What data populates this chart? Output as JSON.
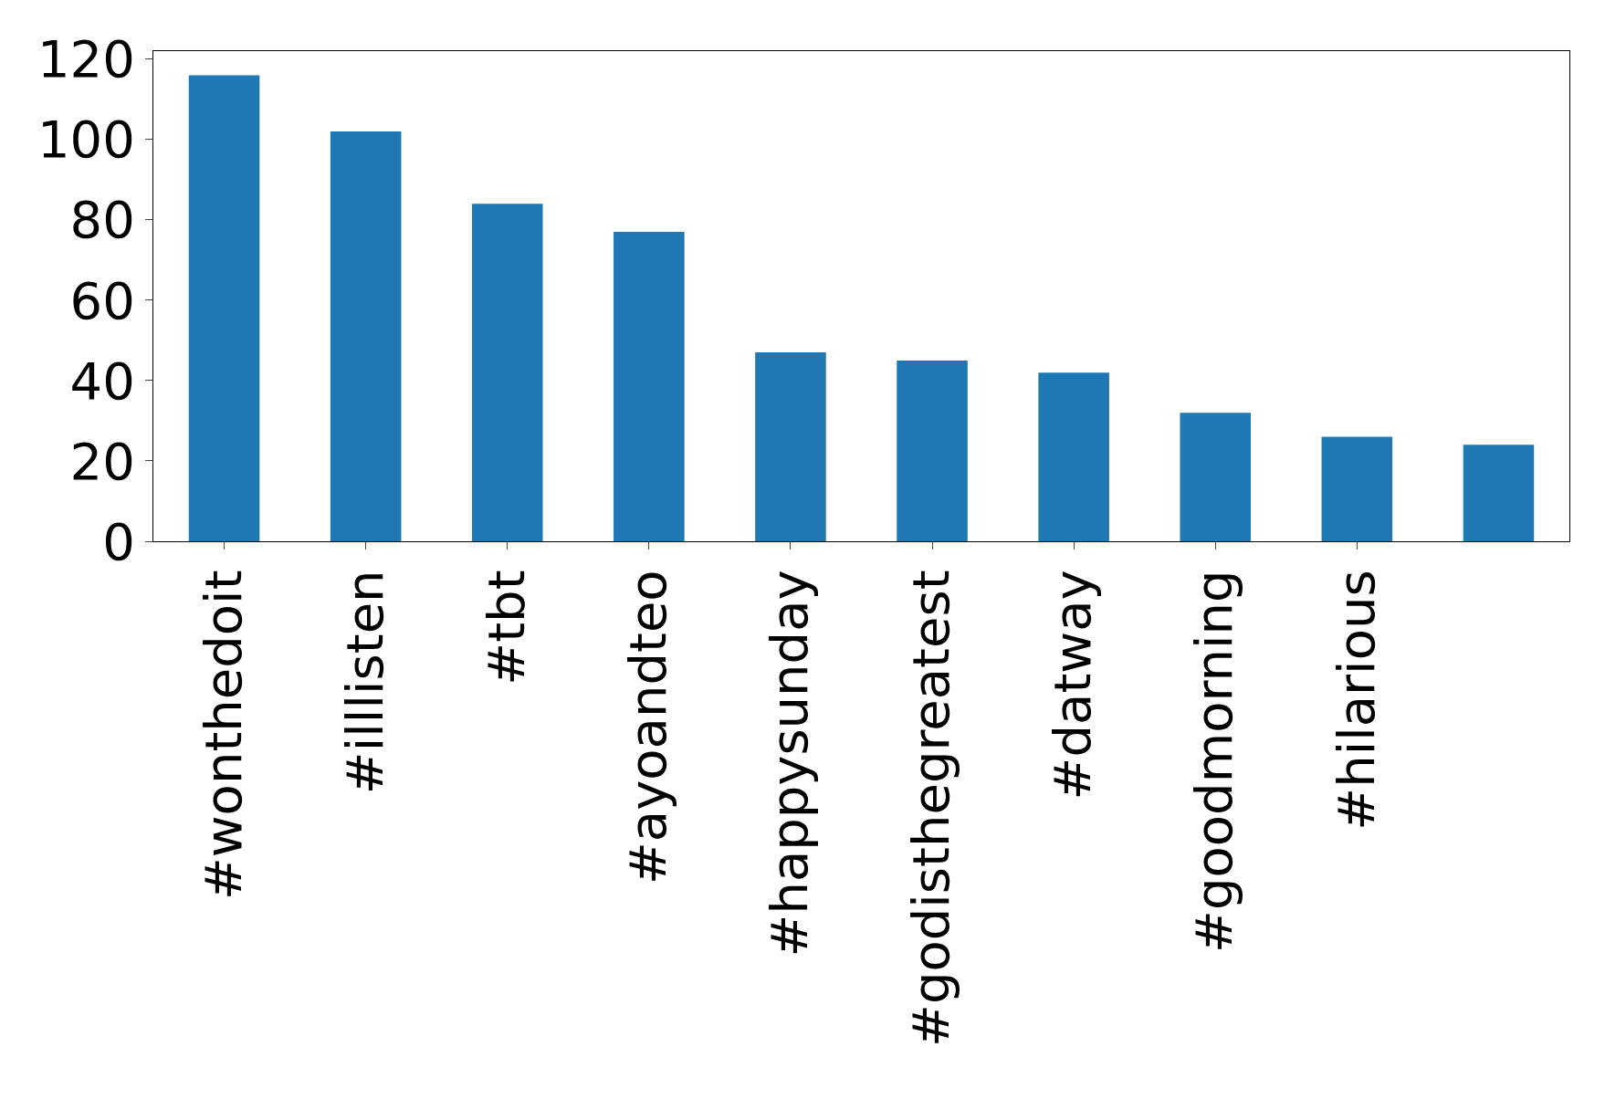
{
  "chart_data": {
    "type": "bar",
    "categories": [
      "#wonthedoit",
      "#illlisten",
      "#tbt",
      "#ayoandteo",
      "#happysunday",
      "#godisthegreatest",
      "#datway",
      "#goodmorning",
      "#hilarious",
      null
    ],
    "values": [
      116,
      102,
      84,
      77,
      47,
      45,
      42,
      32,
      26,
      24
    ],
    "color": "#1f77b4",
    "ylim": [
      0,
      122
    ],
    "yticks": [
      0,
      20,
      40,
      60,
      80,
      100,
      120
    ]
  }
}
